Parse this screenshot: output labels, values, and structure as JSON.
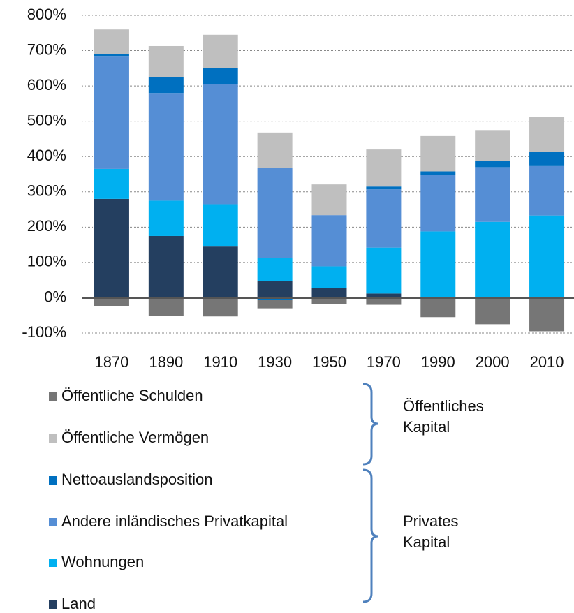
{
  "chart_data": {
    "type": "stacked_bar",
    "categories": [
      "1870",
      "1890",
      "1910",
      "1930",
      "1950",
      "1970",
      "1990",
      "2000",
      "2010"
    ],
    "series": [
      {
        "name": "Öffentliche Schulden",
        "color": "#767676",
        "values": [
          -24,
          -51,
          -53,
          -23,
          -18,
          -20,
          -55,
          -75,
          -95
        ]
      },
      {
        "name": "Öffentliche Vermögen",
        "color": "#bfbfbf",
        "values": [
          70,
          88,
          95,
          100,
          87,
          105,
          100,
          87,
          100
        ]
      },
      {
        "name": "Nettoauslandsposition",
        "color": "#0070c0",
        "values": [
          5,
          45,
          45,
          -7,
          0,
          8,
          10,
          18,
          40
        ]
      },
      {
        "name": "Andere inländisches Privatkapital",
        "color": "#558ed5",
        "values": [
          320,
          305,
          340,
          255,
          145,
          165,
          160,
          155,
          140
        ]
      },
      {
        "name": "Wohnungen",
        "color": "#00b0f0",
        "values": [
          85,
          100,
          120,
          65,
          62,
          130,
          188,
          215,
          233
        ]
      },
      {
        "name": "Land",
        "color": "#243f60",
        "values": [
          280,
          175,
          145,
          48,
          27,
          12,
          0,
          0,
          0
        ]
      }
    ],
    "ylim": [
      -100,
      800
    ],
    "yticks": [
      {
        "value": -100,
        "label": "-100%"
      },
      {
        "value": 0,
        "label": "0%"
      },
      {
        "value": 100,
        "label": "100%"
      },
      {
        "value": 200,
        "label": "200%"
      },
      {
        "value": 300,
        "label": "300%"
      },
      {
        "value": 400,
        "label": "400%"
      },
      {
        "value": 500,
        "label": "500%"
      },
      {
        "value": 600,
        "label": "600%"
      },
      {
        "value": 700,
        "label": "700%"
      },
      {
        "value": 800,
        "label": "800%"
      }
    ],
    "grid": true,
    "legend_groups": [
      [
        "Öffentliches",
        "Kapital"
      ],
      [
        "Privates",
        "Kapital"
      ]
    ]
  }
}
